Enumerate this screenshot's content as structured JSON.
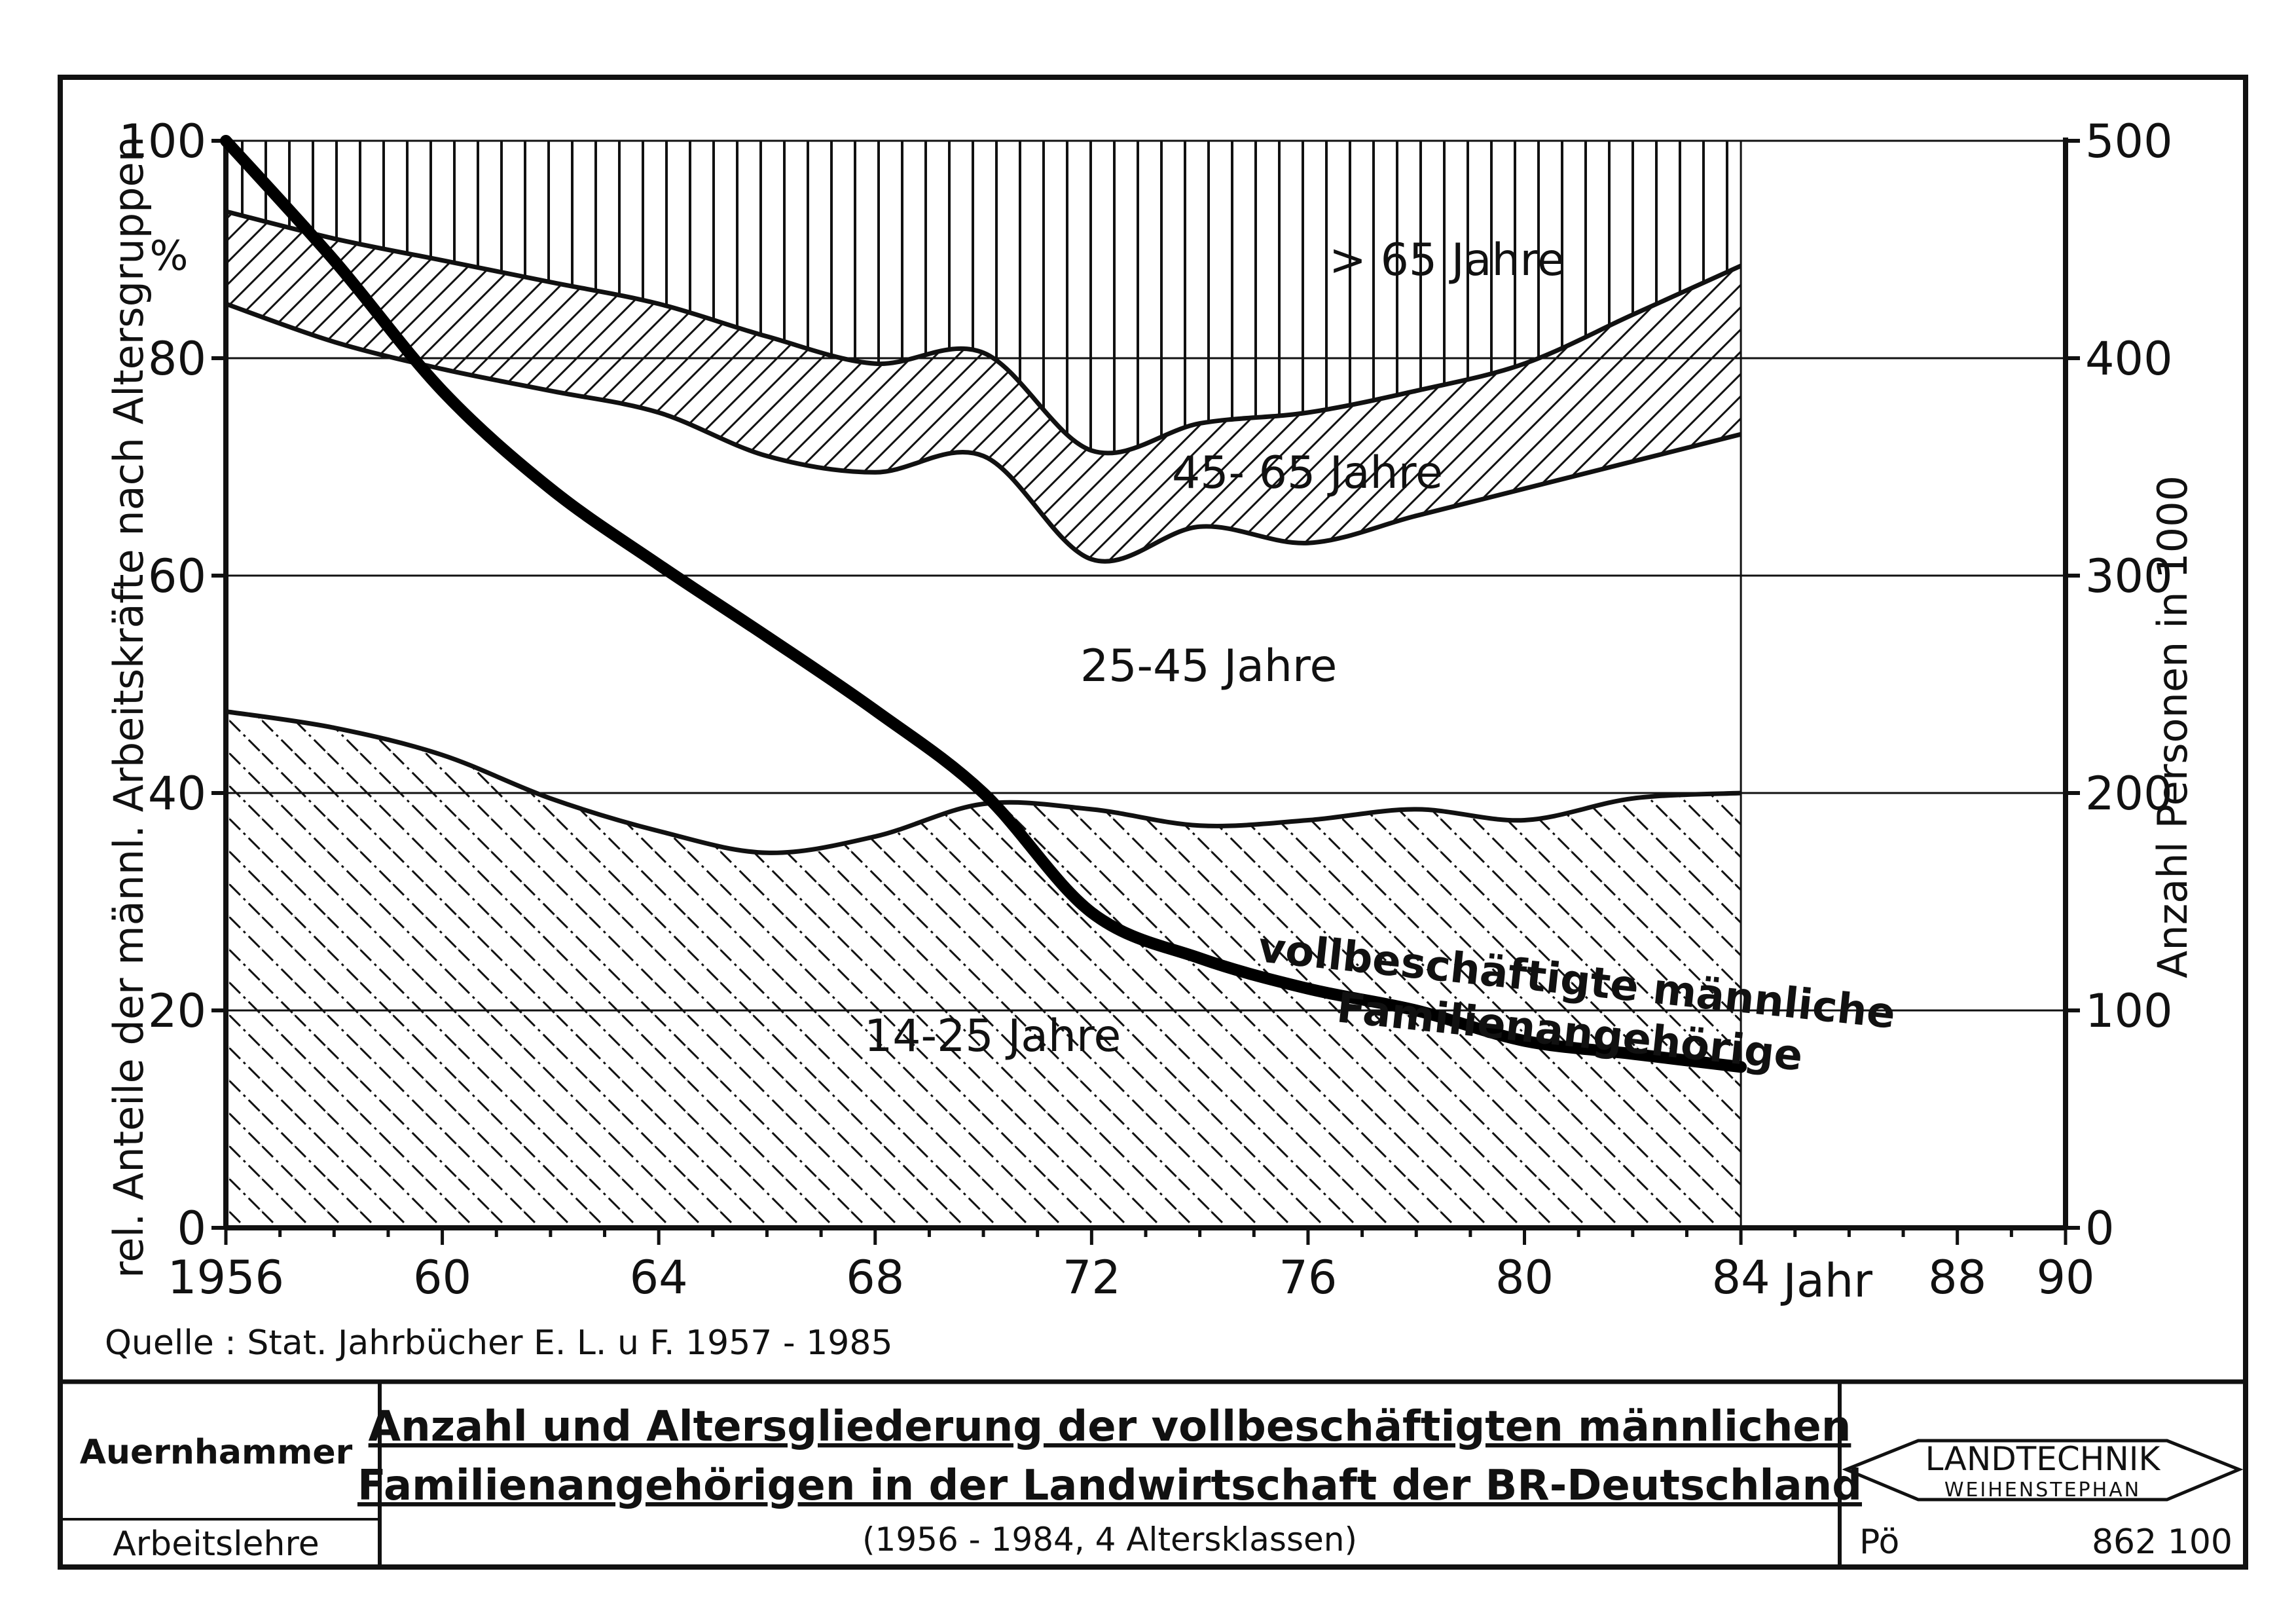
{
  "chart_data": {
    "type": "area",
    "x_unit_label": "Jahr",
    "x": [
      1956,
      1958,
      1960,
      1962,
      1964,
      1966,
      1968,
      1970,
      1972,
      1974,
      1976,
      1978,
      1980,
      1982,
      1984
    ],
    "x_ticks": [
      {
        "value": 1956,
        "label": "1956"
      },
      {
        "value": 1960,
        "label": "60"
      },
      {
        "value": 1964,
        "label": "64"
      },
      {
        "value": 1968,
        "label": "68"
      },
      {
        "value": 1972,
        "label": "72"
      },
      {
        "value": 1976,
        "label": "76"
      },
      {
        "value": 1980,
        "label": "80"
      },
      {
        "value": 1984,
        "label": "84"
      },
      {
        "value": 1988,
        "label": "88"
      },
      {
        "value": 1990,
        "label": "90"
      }
    ],
    "xlim": [
      1956,
      1990
    ],
    "y_left": {
      "label": "rel. Anteile der männl. Arbeitskräfte nach Altersgruppen",
      "unit": "%",
      "ticks": [
        0,
        20,
        40,
        60,
        80,
        100
      ],
      "ylim": [
        0,
        100
      ]
    },
    "y_right": {
      "label": "Anzahl Personen in 1000",
      "ticks": [
        0,
        100,
        200,
        300,
        400,
        500
      ],
      "ylim": [
        0,
        500
      ]
    },
    "grid": true,
    "cumulative_boundaries": [
      {
        "name": "14-25 Jahre",
        "upper": [
          47.5,
          46,
          43.5,
          39.5,
          36.5,
          34.5,
          36,
          39,
          38.5,
          37,
          37.5,
          38.5,
          37.5,
          39.5,
          40
        ]
      },
      {
        "name": "25-45 Jahre",
        "upper": [
          85,
          81.5,
          79,
          77,
          75,
          71,
          69.5,
          71,
          61.5,
          64.5,
          63,
          65.5,
          68,
          70.5,
          73
        ]
      },
      {
        "name": "45-65 Jahre",
        "upper": [
          93.5,
          91,
          89,
          87,
          85,
          82,
          79.5,
          80.5,
          71.5,
          74,
          75,
          77,
          79.5,
          84,
          88.5
        ]
      },
      {
        "name": "> 65 Jahre",
        "upper": [
          100,
          100,
          100,
          100,
          100,
          100,
          100,
          100,
          100,
          100,
          100,
          100,
          100,
          100,
          100
        ]
      }
    ],
    "series": [
      {
        "name": "vollbeschäftigte männliche Familienangehörige",
        "axis": "right",
        "values": [
          500,
          445,
          385,
          340,
          305,
          272,
          238,
          200,
          145,
          124,
          110,
          100,
          86,
          80,
          74
        ]
      }
    ],
    "labels": {
      "r4": "> 65 Jahre",
      "r3": "45- 65 Jahre",
      "r2": "25-45 Jahre",
      "r1": "14-25 Jahre",
      "series_line1": "vollbeschäftigte männliche",
      "series_line2": "Familienangehörige"
    }
  },
  "source": "Quelle : Stat. Jahrbücher E. L. u F. 1957 - 1985",
  "footer": {
    "author": "Auernhammer",
    "subject": "Arbeitslehre",
    "title_line1": "Anzahl und Altersgliederung der vollbeschäftigten männlichen",
    "title_line2": "Familienangehörigen in der Landwirtschaft der BR-Deutschland",
    "subtitle": "(1956 - 1984, 4 Altersklassen)",
    "logo_line1": "LANDTECHNIK",
    "logo_line2": "WEIHENSTEPHAN",
    "code_left": "Pö",
    "code_right": "862 100"
  }
}
